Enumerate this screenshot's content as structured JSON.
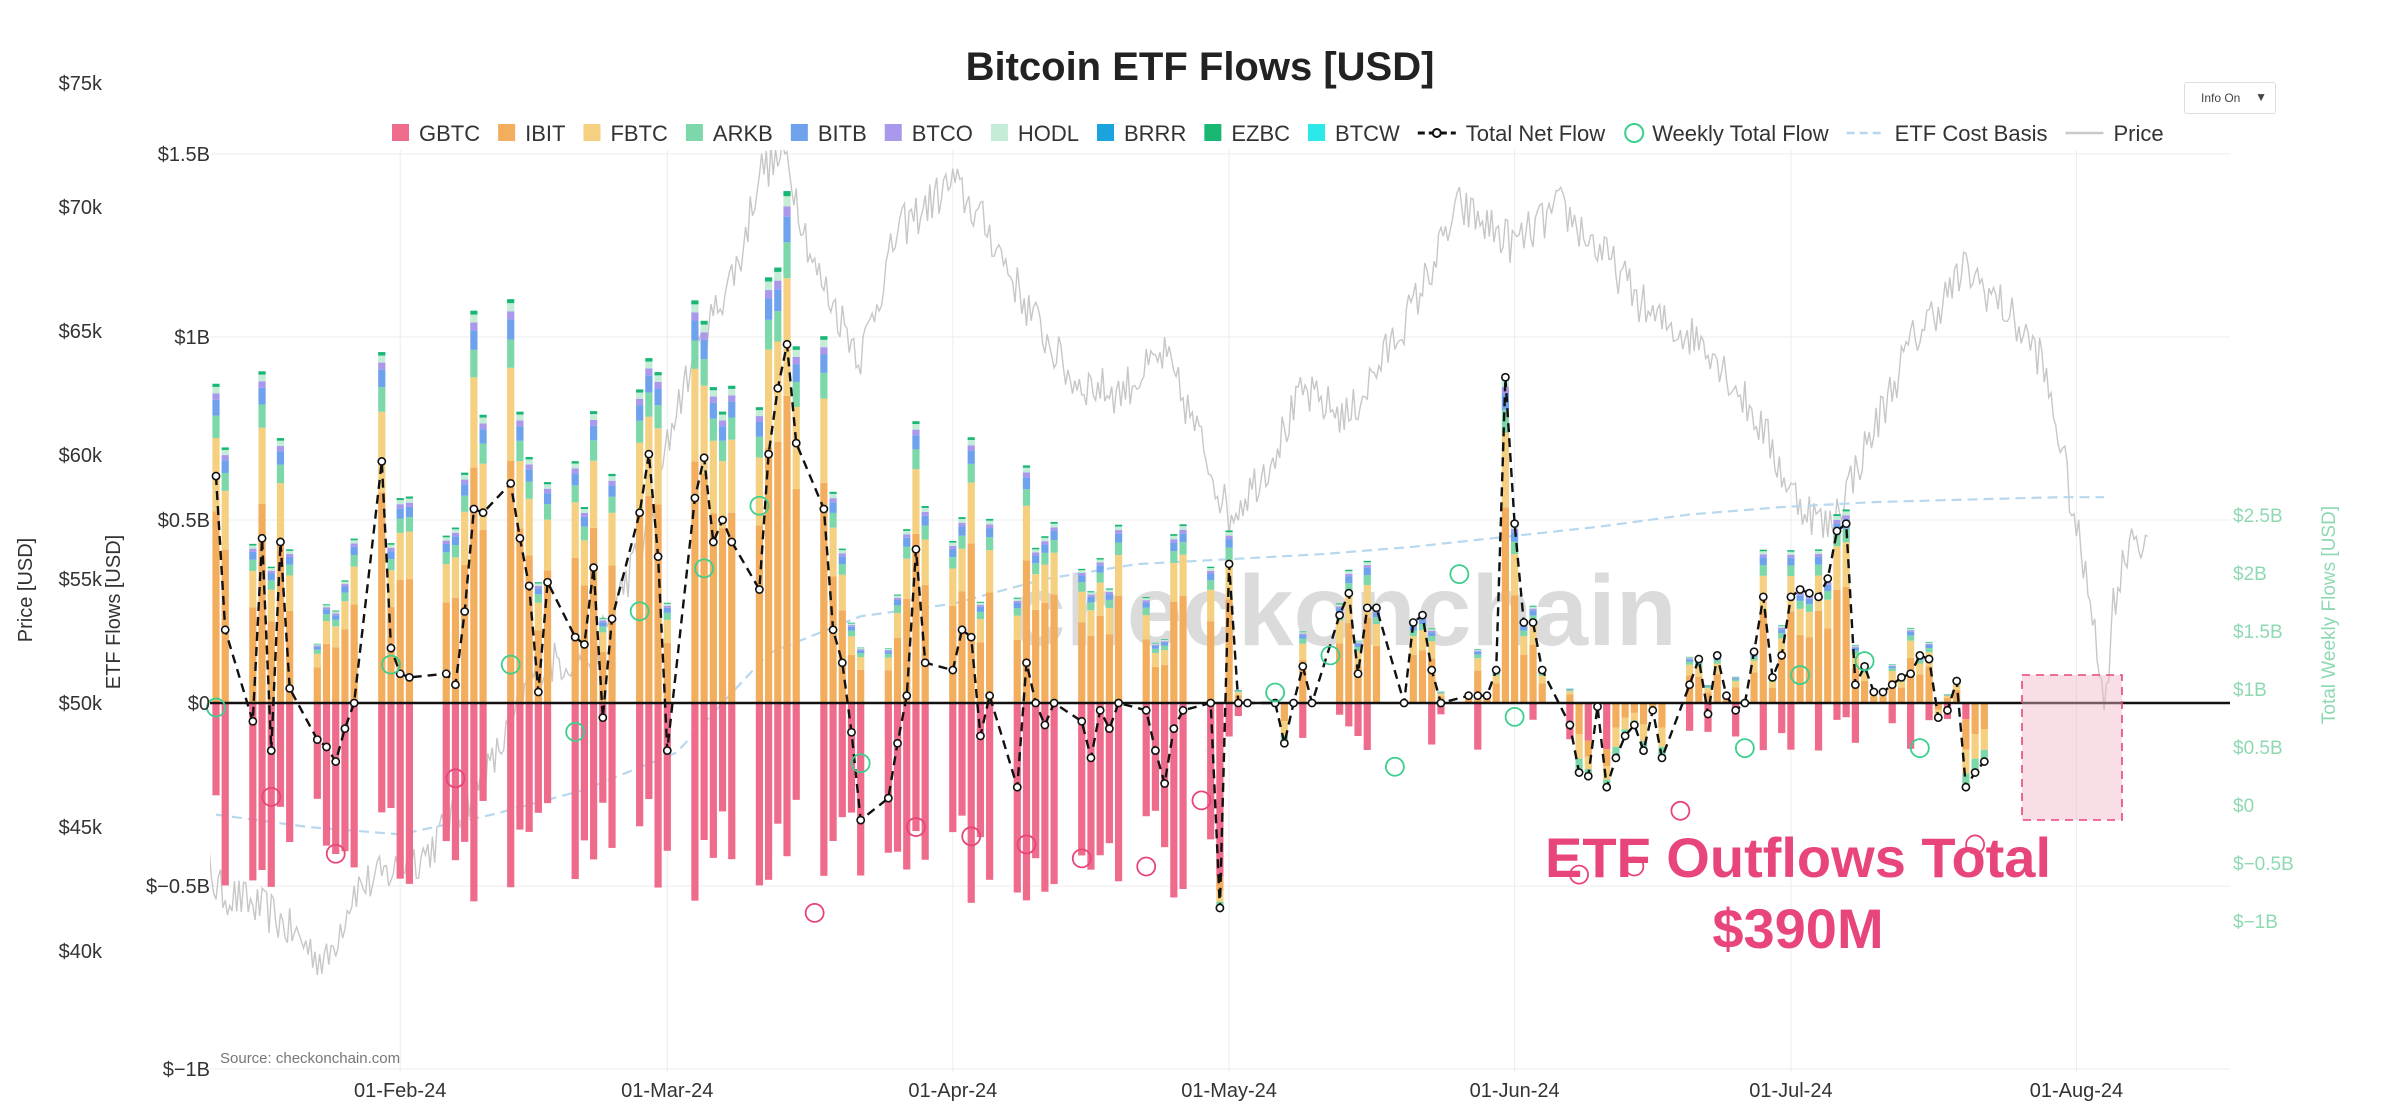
{
  "chart_data": {
    "type": "bar",
    "title": "Bitcoin ETF Flows [USD]",
    "left_axis_label": "Price [USD]",
    "mid_axis_label": "ETF Flows [USD]",
    "right_axis_label": "Total Weekly Flows [USD]",
    "price_ticks": [
      "$75k",
      "$70k",
      "$65k",
      "$60k",
      "$55k",
      "$50k",
      "$45k",
      "$40k"
    ],
    "price_tick_values": [
      75000,
      70000,
      65000,
      60000,
      55000,
      50000,
      45000,
      40000
    ],
    "flow_ticks": [
      "$1.5B",
      "$1B",
      "$0.5B",
      "$0",
      "$−0.5B",
      "$−1B"
    ],
    "flow_tick_values": [
      1.5,
      1.0,
      0.5,
      0,
      -0.5,
      -1.0
    ],
    "weekly_ticks": [
      "$2.5B",
      "$2B",
      "$1.5B",
      "$1B",
      "$0.5B",
      "$0",
      "$−0.5B",
      "$−1B"
    ],
    "weekly_tick_values": [
      2.5,
      2.0,
      1.5,
      1.0,
      0.5,
      0,
      -0.5,
      -1.0
    ],
    "x_ticks": [
      "01-Feb-24",
      "01-Mar-24",
      "01-Apr-24",
      "01-May-24",
      "01-Jun-24",
      "01-Jul-24",
      "01-Aug-24"
    ],
    "x_tick_days": [
      20,
      49,
      80,
      110,
      141,
      171,
      202
    ],
    "ylim_flows": [
      -1.0,
      1.5
    ],
    "ylim_price": [
      37500,
      77500
    ],
    "ylim_weekly": [
      -1.0,
      2.8
    ],
    "legend": [
      {
        "name": "GBTC",
        "color": "#ee6b8c",
        "kind": "box"
      },
      {
        "name": "IBIT",
        "color": "#f2ad5d",
        "kind": "box"
      },
      {
        "name": "FBTC",
        "color": "#f5d080",
        "kind": "box"
      },
      {
        "name": "ARKB",
        "color": "#7dd8a9",
        "kind": "box"
      },
      {
        "name": "BITB",
        "color": "#6fa2ec",
        "kind": "box"
      },
      {
        "name": "BTCO",
        "color": "#a998ec",
        "kind": "box"
      },
      {
        "name": "HODL",
        "color": "#c4ecd7",
        "kind": "box"
      },
      {
        "name": "BRRR",
        "color": "#1aa3dd",
        "kind": "box"
      },
      {
        "name": "EZBC",
        "color": "#18b874",
        "kind": "box"
      },
      {
        "name": "BTCW",
        "color": "#2ce8e8",
        "kind": "box"
      },
      {
        "name": "Total Net Flow",
        "color": "#111111",
        "kind": "dashline"
      },
      {
        "name": "Weekly Total Flow",
        "color": "#3ccf8e",
        "kind": "circle"
      },
      {
        "name": "ETF Cost Basis",
        "color": "#b7d8ee",
        "kind": "dashlight"
      },
      {
        "name": "Price",
        "color": "#c9c9c9",
        "kind": "line"
      }
    ],
    "colors": {
      "GBTC": "#ee6b8c",
      "IBIT": "#f2ad5d",
      "FBTC": "#f5d080",
      "ARKB": "#7dd8a9",
      "BITB": "#6fa2ec",
      "BTCO": "#a998ec",
      "HODL": "#c4ecd7",
      "BRRR": "#1aa3dd",
      "EZBC": "#18b874",
      "BTCW": "#2ce8e8"
    },
    "daily_net_flow": [
      [
        0,
        0.62
      ],
      [
        1,
        0.2
      ],
      [
        4,
        -0.05
      ],
      [
        5,
        0.45
      ],
      [
        6,
        -0.13
      ],
      [
        7,
        0.44
      ],
      [
        8,
        0.04
      ],
      [
        11,
        -0.1
      ],
      [
        12,
        -0.12
      ],
      [
        13,
        -0.16
      ],
      [
        14,
        -0.07
      ],
      [
        15,
        0.0
      ],
      [
        18,
        0.66
      ],
      [
        19,
        0.15
      ],
      [
        20,
        0.08
      ],
      [
        21,
        0.07
      ],
      [
        25,
        0.08
      ],
      [
        26,
        0.05
      ],
      [
        27,
        0.25
      ],
      [
        28,
        0.53
      ],
      [
        29,
        0.52
      ],
      [
        32,
        0.6
      ],
      [
        33,
        0.45
      ],
      [
        34,
        0.32
      ],
      [
        35,
        0.03
      ],
      [
        36,
        0.33
      ],
      [
        39,
        0.18
      ],
      [
        40,
        0.16
      ],
      [
        41,
        0.37
      ],
      [
        42,
        -0.04
      ],
      [
        43,
        0.23
      ],
      [
        46,
        0.52
      ],
      [
        47,
        0.68
      ],
      [
        48,
        0.4
      ],
      [
        49,
        -0.13
      ],
      [
        52,
        0.56
      ],
      [
        53,
        0.67
      ],
      [
        54,
        0.44
      ],
      [
        55,
        0.5
      ],
      [
        56,
        0.44
      ],
      [
        59,
        0.31
      ],
      [
        60,
        0.68
      ],
      [
        61,
        0.86
      ],
      [
        62,
        0.98
      ],
      [
        63,
        0.71
      ],
      [
        66,
        0.53
      ],
      [
        67,
        0.2
      ],
      [
        68,
        0.11
      ],
      [
        69,
        -0.08
      ],
      [
        70,
        -0.32
      ],
      [
        73,
        -0.26
      ],
      [
        74,
        -0.11
      ],
      [
        75,
        0.02
      ],
      [
        76,
        0.42
      ],
      [
        77,
        0.11
      ],
      [
        80,
        0.09
      ],
      [
        81,
        0.2
      ],
      [
        82,
        0.18
      ],
      [
        83,
        -0.09
      ],
      [
        84,
        0.02
      ],
      [
        87,
        -0.23
      ],
      [
        88,
        0.11
      ],
      [
        89,
        0.0
      ],
      [
        90,
        -0.06
      ],
      [
        91,
        0.0
      ],
      [
        94,
        -0.05
      ],
      [
        95,
        -0.15
      ],
      [
        96,
        -0.02
      ],
      [
        97,
        -0.07
      ],
      [
        98,
        0.0
      ],
      [
        101,
        -0.02
      ],
      [
        102,
        -0.13
      ],
      [
        103,
        -0.22
      ],
      [
        104,
        -0.07
      ],
      [
        105,
        -0.02
      ],
      [
        108,
        0.0
      ],
      [
        109,
        -0.56
      ],
      [
        110,
        0.38
      ],
      [
        111,
        0.0
      ],
      [
        112,
        0.0
      ],
      [
        115,
        0.0
      ],
      [
        116,
        -0.11
      ],
      [
        117,
        0.0
      ],
      [
        118,
        0.1
      ],
      [
        119,
        0.0
      ],
      [
        122,
        0.24
      ],
      [
        123,
        0.3
      ],
      [
        124,
        0.08
      ],
      [
        125,
        0.26
      ],
      [
        126,
        0.26
      ],
      [
        129,
        0.0
      ],
      [
        130,
        0.22
      ],
      [
        131,
        0.24
      ],
      [
        132,
        0.09
      ],
      [
        133,
        0.0
      ],
      [
        136,
        0.02
      ],
      [
        137,
        0.02
      ],
      [
        138,
        0.02
      ],
      [
        139,
        0.09
      ],
      [
        140,
        0.89
      ],
      [
        141,
        0.49
      ],
      [
        142,
        0.22
      ],
      [
        143,
        0.22
      ],
      [
        144,
        0.09
      ],
      [
        147,
        -0.06
      ],
      [
        148,
        -0.19
      ],
      [
        149,
        -0.2
      ],
      [
        150,
        -0.01
      ],
      [
        151,
        -0.23
      ],
      [
        152,
        -0.15
      ],
      [
        153,
        -0.09
      ],
      [
        154,
        -0.06
      ],
      [
        155,
        -0.13
      ],
      [
        156,
        -0.02
      ],
      [
        157,
        -0.15
      ],
      [
        160,
        0.05
      ],
      [
        161,
        0.12
      ],
      [
        162,
        -0.03
      ],
      [
        163,
        0.13
      ],
      [
        164,
        0.02
      ],
      [
        165,
        -0.02
      ],
      [
        166,
        0.0
      ],
      [
        167,
        0.14
      ],
      [
        168,
        0.29
      ],
      [
        169,
        0.07
      ],
      [
        170,
        0.13
      ],
      [
        171,
        0.29
      ],
      [
        172,
        0.31
      ],
      [
        173,
        0.3
      ],
      [
        174,
        0.29
      ],
      [
        175,
        0.34
      ],
      [
        176,
        0.47
      ],
      [
        177,
        0.49
      ],
      [
        178,
        0.05
      ],
      [
        179,
        0.1
      ],
      [
        180,
        0.03
      ],
      [
        181,
        0.03
      ],
      [
        182,
        0.05
      ],
      [
        183,
        0.07
      ],
      [
        184,
        0.08
      ],
      [
        185,
        0.13
      ],
      [
        186,
        0.12
      ],
      [
        187,
        -0.04
      ],
      [
        188,
        -0.02
      ],
      [
        189,
        0.06
      ],
      [
        190,
        -0.23
      ],
      [
        191,
        -0.19
      ],
      [
        192,
        -0.16
      ]
    ],
    "weekly_total_flow": [
      [
        0,
        0.84
      ],
      [
        6,
        0.07
      ],
      [
        13,
        -0.42
      ],
      [
        19,
        1.21
      ],
      [
        26,
        0.23
      ],
      [
        32,
        1.21
      ],
      [
        39,
        0.63
      ],
      [
        46,
        1.67
      ],
      [
        53,
        2.04
      ],
      [
        59,
        2.58
      ],
      [
        65,
        -0.93
      ],
      [
        70,
        0.36
      ],
      [
        76,
        -0.19
      ],
      [
        82,
        -0.27
      ],
      [
        88,
        -0.34
      ],
      [
        94,
        -0.46
      ],
      [
        101,
        -0.53
      ],
      [
        107,
        0.04
      ],
      [
        115,
        0.97
      ],
      [
        121,
        1.29
      ],
      [
        128,
        0.33
      ],
      [
        135,
        1.99
      ],
      [
        141,
        0.76
      ],
      [
        148,
        -0.6
      ],
      [
        154,
        -0.53
      ],
      [
        159,
        -0.05
      ],
      [
        166,
        0.49
      ],
      [
        172,
        1.12
      ],
      [
        179,
        1.24
      ],
      [
        185,
        0.49
      ],
      [
        191,
        -0.34
      ]
    ],
    "annotation": [
      "ETF Outflows Total",
      "$390M"
    ],
    "watermark": "checkonchain",
    "source": "Source: checkonchain.com",
    "info_button": "Info On"
  }
}
